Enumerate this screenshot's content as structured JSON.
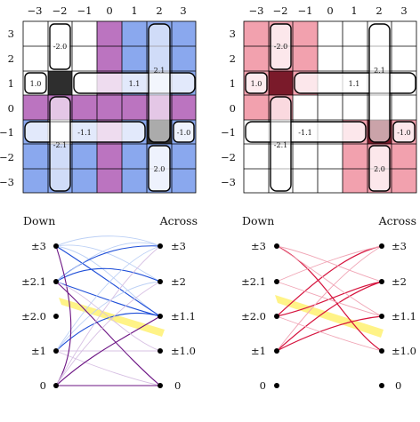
{
  "colors": {
    "blue": "#8aa8ee",
    "purple": "#bb74c0",
    "lightpurple": "#dec8e6",
    "pink": "#f2a1ae",
    "darkred": "#7a1a2a",
    "dark": "#2e2e2e",
    "highlight": "#fff27a",
    "edge_blue": "#1e4ed8",
    "edge_purple": "#6b1383",
    "edge_red": "#d6143e"
  },
  "grid_left": {
    "x_ticks": [
      "−3",
      "−2",
      "−1",
      "0",
      "1",
      "2",
      "3"
    ],
    "y_ticks": [
      "3",
      "2",
      "1",
      "0",
      "−1",
      "−2",
      "−3"
    ],
    "pills": [
      {
        "label": "-2.0",
        "name": "pill-minus-2-0"
      },
      {
        "label": "1.0",
        "name": "pill-1-0"
      },
      {
        "label": "1.1",
        "name": "pill-1-1"
      },
      {
        "label": "2.1",
        "name": "pill-2-1"
      },
      {
        "label": "-1.1",
        "name": "pill-minus-1-1"
      },
      {
        "label": "-2.1",
        "name": "pill-minus-2-1"
      },
      {
        "label": "-1.0",
        "name": "pill-minus-1-0"
      },
      {
        "label": "2.0",
        "name": "pill-2-0"
      }
    ]
  },
  "grid_right": {
    "x_ticks": [
      "−3",
      "−2",
      "−1",
      "0",
      "1",
      "2",
      "3"
    ],
    "y_ticks": [
      "3",
      "2",
      "1",
      "0",
      "−1",
      "−2",
      "−3"
    ],
    "pills": [
      {
        "label": "-2.0",
        "name": "pill-minus-2-0"
      },
      {
        "label": "1.0",
        "name": "pill-1-0"
      },
      {
        "label": "1.1",
        "name": "pill-1-1"
      },
      {
        "label": "2.1",
        "name": "pill-2-1"
      },
      {
        "label": "-1.1",
        "name": "pill-minus-1-1"
      },
      {
        "label": "-2.1",
        "name": "pill-minus-2-1"
      },
      {
        "label": "-1.0",
        "name": "pill-minus-1-0"
      },
      {
        "label": "2.0",
        "name": "pill-2-0"
      }
    ]
  },
  "bipartite_left": {
    "down_title": "Down",
    "across_title": "Across",
    "down_labels": [
      "±3",
      "±2.1",
      "±2.0",
      "±1",
      "0"
    ],
    "across_labels": [
      "±3",
      "±2",
      "±1.1",
      "±1.0",
      "0"
    ]
  },
  "bipartite_right": {
    "down_title": "Down",
    "across_title": "Across",
    "down_labels": [
      "±3",
      "±2.1",
      "±2.0",
      "±1",
      "0"
    ],
    "across_labels": [
      "±3",
      "±2",
      "±1.1",
      "±1.0",
      "0"
    ]
  }
}
